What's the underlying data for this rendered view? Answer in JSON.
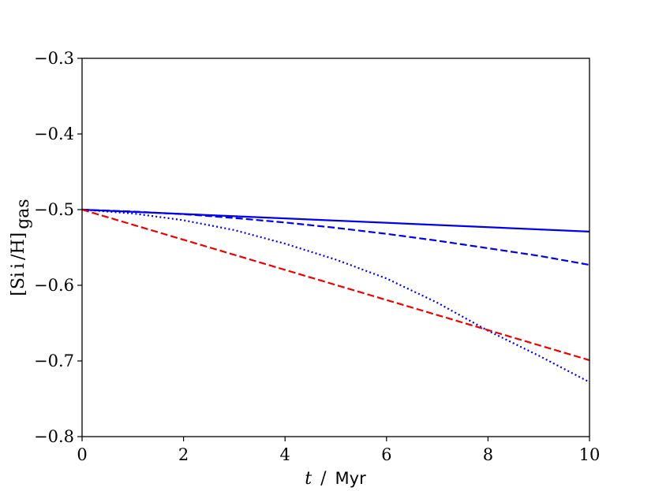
{
  "chart_data": {
    "type": "line",
    "title": "",
    "xlabel": {
      "var": "t",
      "sep": " / ",
      "unit": "Myr"
    },
    "ylabel": {
      "main": "[Si",
      "roman": "i",
      "rest": "/H]",
      "sub": "gas"
    },
    "xlim": [
      0,
      10
    ],
    "ylim": [
      -0.8,
      -0.3
    ],
    "xticks": [
      0,
      2,
      4,
      6,
      8,
      10
    ],
    "yticks": [
      -0.8,
      -0.7,
      -0.6,
      -0.5,
      -0.4,
      -0.3
    ],
    "xtick_labels": [
      "0",
      "2",
      "4",
      "6",
      "8",
      "10"
    ],
    "ytick_labels": [
      "−0.8",
      "−0.7",
      "−0.6",
      "−0.5",
      "−0.4",
      "−0.3"
    ],
    "grid": false,
    "legend": false,
    "series": [
      {
        "color": "#0000ee",
        "style": "solid",
        "x": [
          0,
          10
        ],
        "y": [
          -0.5,
          -0.529
        ]
      },
      {
        "color": "#0000ee",
        "style": "dashed",
        "x": [
          0,
          1,
          2,
          3,
          4,
          5,
          6,
          7,
          8,
          9,
          10
        ],
        "y": [
          -0.5,
          -0.5025,
          -0.506,
          -0.511,
          -0.517,
          -0.524,
          -0.532,
          -0.541,
          -0.551,
          -0.561,
          -0.573
        ]
      },
      {
        "color": "#0000ee",
        "style": "dotted",
        "x": [
          0,
          1,
          2,
          3,
          4,
          5,
          6,
          7,
          8,
          9,
          10
        ],
        "y": [
          -0.5,
          -0.505,
          -0.514,
          -0.527,
          -0.545,
          -0.566,
          -0.591,
          -0.623,
          -0.66,
          -0.693,
          -0.728
        ]
      },
      {
        "color": "#ee0000",
        "style": "dashed",
        "x": [
          0,
          10
        ],
        "y": [
          -0.5,
          -0.699
        ]
      }
    ]
  }
}
